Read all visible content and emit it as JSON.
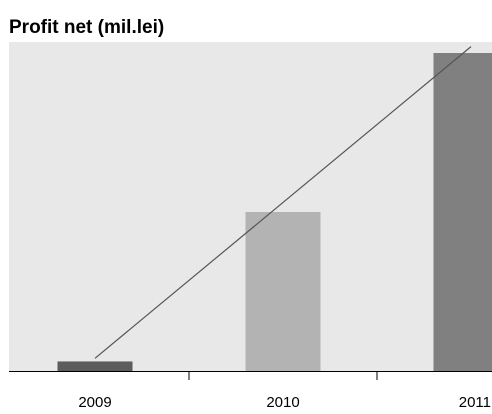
{
  "chart_data": {
    "type": "bar",
    "title": "Profit net (mil.lei)",
    "categories": [
      "2009",
      "2010",
      "2011"
    ],
    "values": [
      3,
      50,
      100
    ],
    "ylim": [
      0,
      100
    ],
    "xlabel": "",
    "ylabel": "",
    "grid": false,
    "legend": "none",
    "trendline": {
      "type": "linear",
      "from": {
        "category": "2009",
        "value": 4
      },
      "to": {
        "category": "2011",
        "value": 102
      }
    },
    "colors": {
      "plot_background": "#e8e8e8",
      "bars": [
        "#5c5c5c",
        "#b3b3b3",
        "#808080"
      ],
      "trendline": "#555555",
      "axis": "#000000"
    }
  }
}
